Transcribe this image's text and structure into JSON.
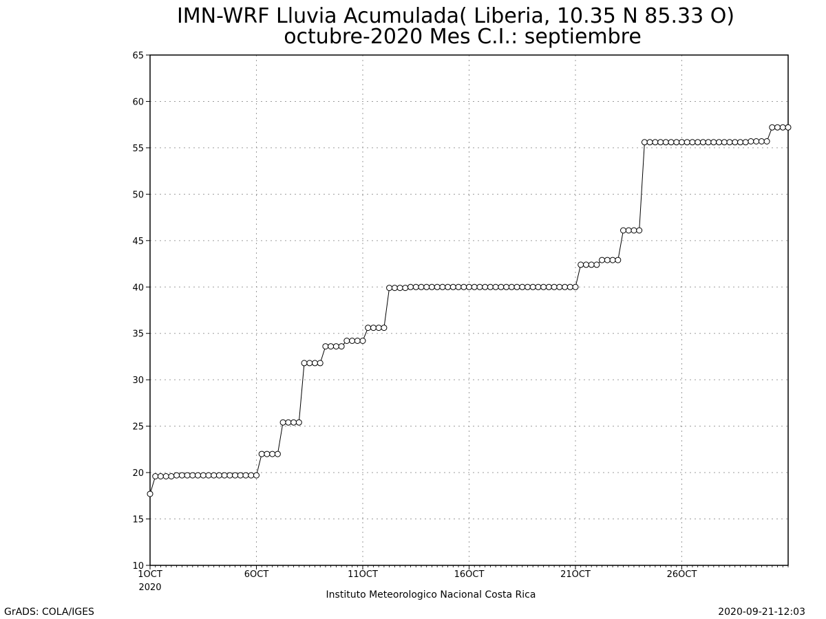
{
  "chart_data": {
    "type": "line",
    "title": "IMN-WRF  Lluvia Acumulada( Liberia, 10.35  N 85.33  O)",
    "subtitle": "octubre-2020 Mes C.I.: septiembre",
    "xlabel": "",
    "ylabel": "",
    "xlabel_note": "2020",
    "credit_left": "GrADS: COLA/IGES",
    "credit_center": "Instituto Meteorologico Nacional Costa Rica",
    "timestamp": "2020-09-21-12:03",
    "ylim": [
      10,
      65
    ],
    "yticks": [
      10,
      15,
      20,
      25,
      30,
      35,
      40,
      45,
      50,
      55,
      60,
      65
    ],
    "xlim": [
      1,
      31
    ],
    "xticks": [
      {
        "x": 1,
        "label": "1OCT"
      },
      {
        "x": 6,
        "label": "6OCT"
      },
      {
        "x": 11,
        "label": "11OCT"
      },
      {
        "x": 16,
        "label": "16OCT"
      },
      {
        "x": 21,
        "label": "21OCT"
      },
      {
        "x": 26,
        "label": "26OCT"
      }
    ],
    "grid": true,
    "marker": "open-circle",
    "series": [
      {
        "name": "",
        "x": [
          1,
          1.25,
          1.5,
          1.75,
          2,
          2.25,
          2.5,
          2.75,
          3,
          3.25,
          3.5,
          3.75,
          4,
          4.25,
          4.5,
          4.75,
          5,
          5.25,
          5.5,
          5.75,
          6,
          6.25,
          6.5,
          6.75,
          7,
          7.25,
          7.5,
          7.75,
          8,
          8.25,
          8.5,
          8.75,
          9,
          9.25,
          9.5,
          9.75,
          10,
          10.25,
          10.5,
          10.75,
          11,
          11.25,
          11.5,
          11.75,
          12,
          12.25,
          12.5,
          12.75,
          13,
          13.25,
          13.5,
          13.75,
          14,
          14.25,
          14.5,
          14.75,
          15,
          15.25,
          15.5,
          15.75,
          16,
          16.25,
          16.5,
          16.75,
          17,
          17.25,
          17.5,
          17.75,
          18,
          18.25,
          18.5,
          18.75,
          19,
          19.25,
          19.5,
          19.75,
          20,
          20.25,
          20.5,
          20.75,
          21,
          21.25,
          21.5,
          21.75,
          22,
          22.25,
          22.5,
          22.75,
          23,
          23.25,
          23.5,
          23.75,
          24,
          24.25,
          24.5,
          24.75,
          25,
          25.25,
          25.5,
          25.75,
          26,
          26.25,
          26.5,
          26.75,
          27,
          27.25,
          27.5,
          27.75,
          28,
          28.25,
          28.5,
          28.75,
          29,
          29.25,
          29.5,
          29.75,
          30,
          30.25,
          30.5,
          30.75,
          31
        ],
        "values": [
          17.7,
          19.6,
          19.6,
          19.6,
          19.6,
          19.7,
          19.7,
          19.7,
          19.7,
          19.7,
          19.7,
          19.7,
          19.7,
          19.7,
          19.7,
          19.7,
          19.7,
          19.7,
          19.7,
          19.7,
          19.7,
          22.0,
          22.0,
          22.0,
          22.0,
          25.4,
          25.4,
          25.4,
          25.4,
          31.8,
          31.8,
          31.8,
          31.8,
          33.6,
          33.6,
          33.6,
          33.6,
          34.2,
          34.2,
          34.2,
          34.2,
          35.6,
          35.6,
          35.6,
          35.6,
          39.9,
          39.9,
          39.9,
          39.9,
          40.0,
          40.0,
          40.0,
          40.0,
          40.0,
          40.0,
          40.0,
          40.0,
          40.0,
          40.0,
          40.0,
          40.0,
          40.0,
          40.0,
          40.0,
          40.0,
          40.0,
          40.0,
          40.0,
          40.0,
          40.0,
          40.0,
          40.0,
          40.0,
          40.0,
          40.0,
          40.0,
          40.0,
          40.0,
          40.0,
          40.0,
          40.0,
          42.4,
          42.4,
          42.4,
          42.4,
          42.9,
          42.9,
          42.9,
          42.9,
          46.1,
          46.1,
          46.1,
          46.1,
          55.6,
          55.6,
          55.6,
          55.6,
          55.6,
          55.6,
          55.6,
          55.6,
          55.6,
          55.6,
          55.6,
          55.6,
          55.6,
          55.6,
          55.6,
          55.6,
          55.6,
          55.6,
          55.6,
          55.6,
          55.7,
          55.7,
          55.7,
          55.7,
          57.2,
          57.2,
          57.2,
          57.2
        ]
      }
    ]
  }
}
